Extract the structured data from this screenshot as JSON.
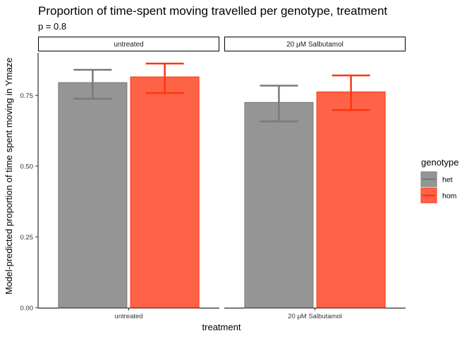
{
  "chart_data": {
    "type": "bar",
    "title": "Proportion of time-spent moving travelled per genotype, treatment",
    "subtitle": "p = 0.8",
    "xlabel": "treatment",
    "ylabel": "Model-predicted proportion of time spent moving in Ymaze",
    "ylim": [
      0,
      0.9
    ],
    "yticks": [
      0.0,
      0.25,
      0.5,
      0.75
    ],
    "ytick_labels": [
      "0.00",
      "0.25",
      "0.50",
      "0.75"
    ],
    "panels": [
      "untreated",
      "20 μM Salbutamol"
    ],
    "legend": {
      "title": "genotype",
      "position": "right"
    },
    "grid": false,
    "series": [
      {
        "name": "het",
        "color": "#7a7a7a",
        "fill": "#959595",
        "values": [
          0.795,
          0.725
        ],
        "lower": [
          0.738,
          0.658
        ],
        "upper": [
          0.84,
          0.784
        ]
      },
      {
        "name": "hom",
        "color": "#ff3510",
        "fill": "#ff6347",
        "values": [
          0.815,
          0.762
        ],
        "lower": [
          0.758,
          0.698
        ],
        "upper": [
          0.862,
          0.82
        ]
      }
    ]
  }
}
